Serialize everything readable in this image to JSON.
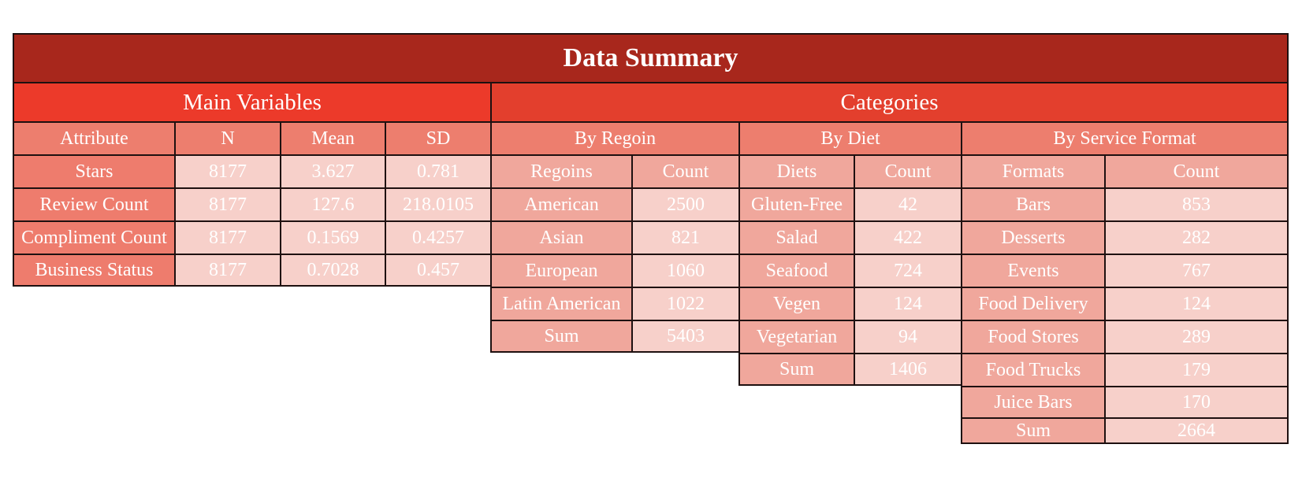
{
  "title": "Data Summary",
  "main": {
    "section_label": "Main Variables",
    "headers": [
      "Attribute",
      "N",
      "Mean",
      "SD"
    ],
    "rows": [
      [
        "Stars",
        "8177",
        "3.627",
        "0.781"
      ],
      [
        "Review Count",
        "8177",
        "127.6",
        "218.0105"
      ],
      [
        "Compliment Count",
        "8177",
        "0.1569",
        "0.4257"
      ],
      [
        "Business Status",
        "8177",
        "0.7028",
        "0.457"
      ]
    ]
  },
  "categories": {
    "section_label": "Categories",
    "region": {
      "label": "By Regoin",
      "headers": [
        "Regoins",
        "Count"
      ],
      "rows": [
        [
          "American",
          "2500"
        ],
        [
          "Asian",
          "821"
        ],
        [
          "European",
          "1060"
        ],
        [
          "Latin American",
          "1022"
        ],
        [
          "Sum",
          "5403"
        ]
      ]
    },
    "diet": {
      "label": "By Diet",
      "headers": [
        "Diets",
        "Count"
      ],
      "rows": [
        [
          "Gluten-Free",
          "42"
        ],
        [
          "Salad",
          "422"
        ],
        [
          "Seafood",
          "724"
        ],
        [
          "Vegen",
          "124"
        ],
        [
          "Vegetarian",
          "94"
        ],
        [
          "Sum",
          "1406"
        ]
      ]
    },
    "service": {
      "label": "By Service Format",
      "headers": [
        "Formats",
        "Count"
      ],
      "rows": [
        [
          "Bars",
          "853"
        ],
        [
          "Desserts",
          "282"
        ],
        [
          "Events",
          "767"
        ],
        [
          "Food Delivery",
          "124"
        ],
        [
          "Food Stores",
          "289"
        ],
        [
          "Food Trucks",
          "179"
        ],
        [
          "Juice Bars",
          "170"
        ],
        [
          "Sum",
          "2664"
        ]
      ]
    }
  },
  "colors": {
    "title_bg": "#a8271c",
    "section_bg": "#ec3a2a",
    "header_bg": "#ed7e6e",
    "label_bg": "#f0a79c",
    "value_bg": "#f7d0ca",
    "border": "#1e1010",
    "text": "#ffffff"
  }
}
